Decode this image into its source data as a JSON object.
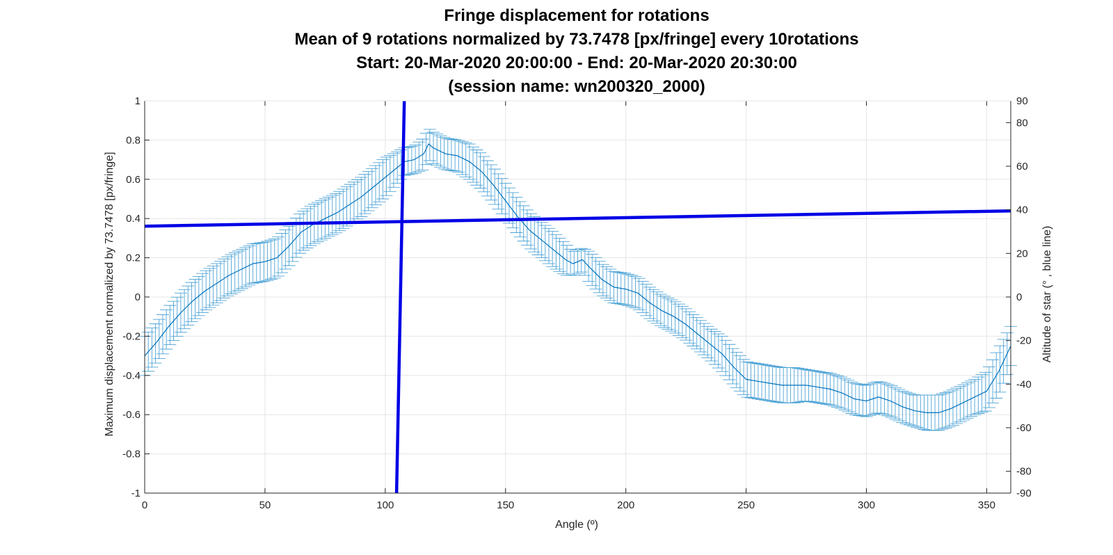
{
  "chart_data": {
    "type": "line",
    "title_lines": [
      "Fringe displacement for rotations",
      "Mean of 9 rotations normalized by 73.7478 [px/fringe] every 10rotations",
      "Start: 20-Mar-2020 20:00:00 - End: 20-Mar-2020 20:30:00",
      "(session name: wn200320_2000)"
    ],
    "xlabel": "Angle (º)",
    "ylabel": "Maximum displacement  normalized by 73.7478 [px/fringe]",
    "ylabel_right": "Altitude of star (° , blue line)",
    "xlim": [
      0,
      360
    ],
    "ylim": [
      -1,
      1
    ],
    "ylim_right": [
      -90,
      90
    ],
    "x_ticks": [
      "0",
      "50",
      "100",
      "150",
      "200",
      "250",
      "300",
      "350"
    ],
    "y_ticks": [
      "-1",
      "-0.8",
      "-0.6",
      "-0.4",
      "-0.2",
      "0",
      "0.2",
      "0.4",
      "0.6",
      "0.8",
      "1"
    ],
    "y_ticks_right": [
      "-90",
      "-80",
      "-60",
      "-40",
      "-20",
      "0",
      "20",
      "40",
      "60",
      "80",
      "90"
    ],
    "grid": true,
    "colors": {
      "mean": "#0072BD",
      "errorbar": "#4DA3D6",
      "altitude": "#0000E6",
      "grid": "#E6E6E6",
      "axis": "#262626"
    },
    "series": [
      {
        "style": "line-with-errorbars",
        "x": [
          0,
          5,
          10,
          15,
          20,
          25,
          30,
          35,
          40,
          45,
          50,
          55,
          60,
          65,
          70,
          75,
          80,
          85,
          90,
          95,
          100,
          105,
          108,
          112,
          116,
          118,
          120,
          125,
          130,
          135,
          140,
          145,
          150,
          155,
          160,
          165,
          170,
          175,
          178,
          182,
          185,
          190,
          195,
          200,
          205,
          210,
          215,
          220,
          225,
          230,
          235,
          240,
          245,
          250,
          255,
          260,
          265,
          270,
          275,
          280,
          285,
          290,
          295,
          300,
          305,
          310,
          315,
          320,
          325,
          330,
          335,
          340,
          345,
          350,
          355,
          360
        ],
        "y": [
          -0.3,
          -0.23,
          -0.15,
          -0.08,
          -0.02,
          0.03,
          0.07,
          0.11,
          0.14,
          0.17,
          0.18,
          0.2,
          0.26,
          0.33,
          0.37,
          0.4,
          0.43,
          0.47,
          0.51,
          0.56,
          0.61,
          0.66,
          0.69,
          0.7,
          0.73,
          0.78,
          0.76,
          0.73,
          0.72,
          0.69,
          0.64,
          0.57,
          0.49,
          0.41,
          0.34,
          0.29,
          0.24,
          0.19,
          0.17,
          0.19,
          0.15,
          0.09,
          0.05,
          0.04,
          0.02,
          -0.03,
          -0.07,
          -0.1,
          -0.14,
          -0.19,
          -0.24,
          -0.29,
          -0.36,
          -0.42,
          -0.43,
          -0.44,
          -0.45,
          -0.45,
          -0.45,
          -0.46,
          -0.47,
          -0.49,
          -0.52,
          -0.53,
          -0.51,
          -0.53,
          -0.56,
          -0.58,
          -0.59,
          -0.59,
          -0.57,
          -0.54,
          -0.51,
          -0.48,
          -0.38,
          -0.25
        ],
        "error": [
          0.1,
          0.1,
          0.1,
          0.1,
          0.1,
          0.1,
          0.1,
          0.1,
          0.1,
          0.1,
          0.1,
          0.1,
          0.1,
          0.1,
          0.1,
          0.1,
          0.1,
          0.1,
          0.1,
          0.1,
          0.1,
          0.08,
          0.07,
          0.07,
          0.08,
          0.08,
          0.08,
          0.08,
          0.08,
          0.09,
          0.09,
          0.09,
          0.09,
          0.09,
          0.09,
          0.09,
          0.09,
          0.08,
          0.06,
          0.06,
          0.08,
          0.08,
          0.08,
          0.08,
          0.08,
          0.08,
          0.08,
          0.08,
          0.08,
          0.08,
          0.08,
          0.09,
          0.09,
          0.09,
          0.09,
          0.09,
          0.09,
          0.09,
          0.08,
          0.08,
          0.08,
          0.08,
          0.08,
          0.08,
          0.08,
          0.08,
          0.08,
          0.08,
          0.09,
          0.09,
          0.09,
          0.09,
          0.09,
          0.1,
          0.12,
          0.1
        ]
      },
      {
        "style": "line",
        "axis": "right",
        "x": [
          0,
          360
        ],
        "y": [
          32.5,
          39.5
        ]
      },
      {
        "style": "line",
        "axis": "right",
        "x": [
          104.7,
          107.9
        ],
        "y": [
          -90,
          90
        ]
      }
    ]
  }
}
